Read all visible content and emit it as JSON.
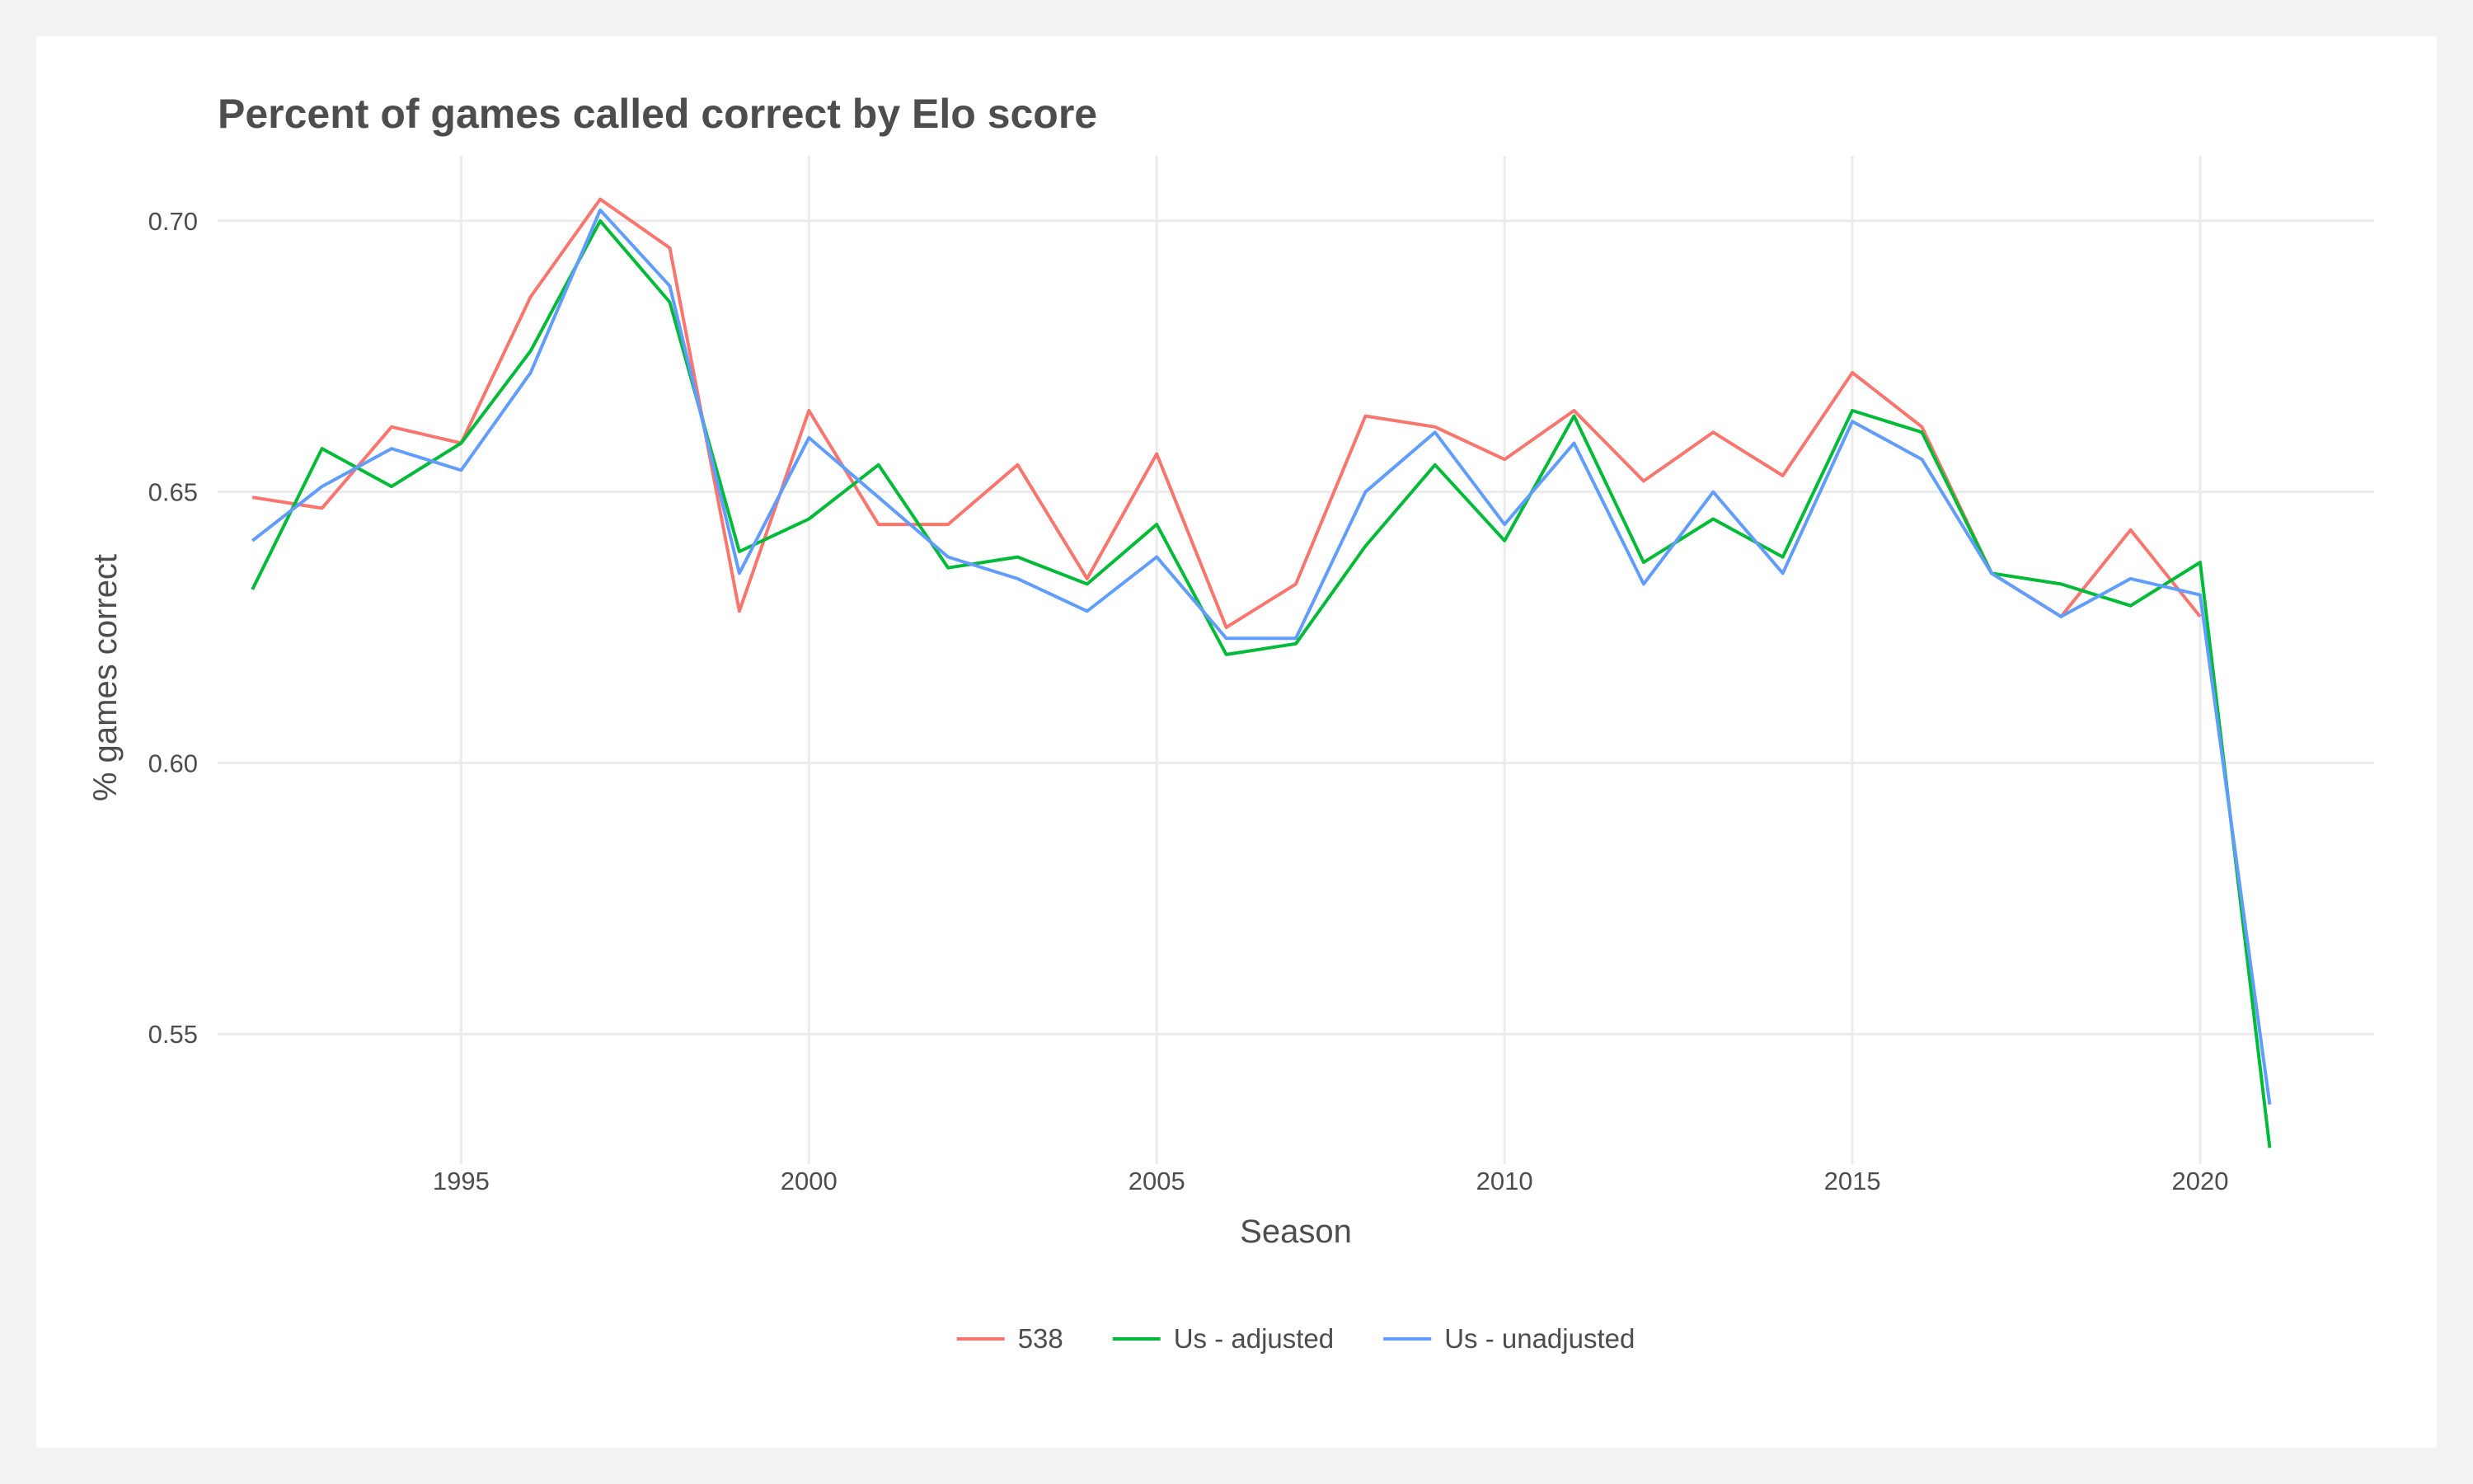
{
  "chart_data": {
    "type": "line",
    "title": "Percent of games called correct by Elo score",
    "xlabel": "Season",
    "ylabel": "% games correct",
    "xlim": [
      1991.5,
      2022.5
    ],
    "ylim": [
      0.526,
      0.712
    ],
    "x_ticks": [
      1995,
      2000,
      2005,
      2010,
      2015,
      2020
    ],
    "y_ticks": [
      0.55,
      0.6,
      0.65,
      0.7
    ],
    "y_tick_labels": [
      "0.55",
      "0.60",
      "0.65",
      "0.70"
    ],
    "grid": true,
    "legend_position": "bottom",
    "x": [
      1992,
      1993,
      1994,
      1995,
      1996,
      1997,
      1998,
      1999,
      2000,
      2001,
      2002,
      2003,
      2004,
      2005,
      2006,
      2007,
      2008,
      2009,
      2010,
      2011,
      2012,
      2013,
      2014,
      2015,
      2016,
      2017,
      2018,
      2019,
      2020,
      2021
    ],
    "series": [
      {
        "name": "538",
        "color": "#F8766D",
        "values": [
          0.649,
          0.647,
          0.662,
          0.659,
          0.686,
          0.704,
          0.695,
          0.628,
          0.665,
          0.644,
          0.644,
          0.655,
          0.634,
          0.657,
          0.625,
          0.633,
          0.664,
          0.662,
          0.656,
          0.665,
          0.652,
          0.661,
          0.653,
          0.672,
          0.662,
          0.635,
          0.627,
          0.643,
          0.627,
          null
        ]
      },
      {
        "name": "Us - adjusted",
        "color": "#00BA38",
        "values": [
          0.632,
          0.658,
          0.651,
          0.659,
          0.676,
          0.7,
          0.685,
          0.639,
          0.645,
          0.655,
          0.636,
          0.638,
          0.633,
          0.644,
          0.62,
          0.622,
          0.64,
          0.655,
          0.641,
          0.664,
          0.637,
          0.645,
          0.638,
          0.665,
          0.661,
          0.635,
          0.633,
          0.629,
          0.637,
          0.529
        ]
      },
      {
        "name": "Us - unadjusted",
        "color": "#619CFF",
        "values": [
          0.641,
          0.651,
          0.658,
          0.654,
          0.672,
          0.702,
          0.688,
          0.635,
          0.66,
          0.649,
          0.638,
          0.634,
          0.628,
          0.638,
          0.623,
          0.623,
          0.65,
          0.661,
          0.644,
          0.659,
          0.633,
          0.65,
          0.635,
          0.663,
          0.656,
          0.635,
          0.627,
          0.634,
          0.631,
          0.537
        ]
      }
    ]
  }
}
